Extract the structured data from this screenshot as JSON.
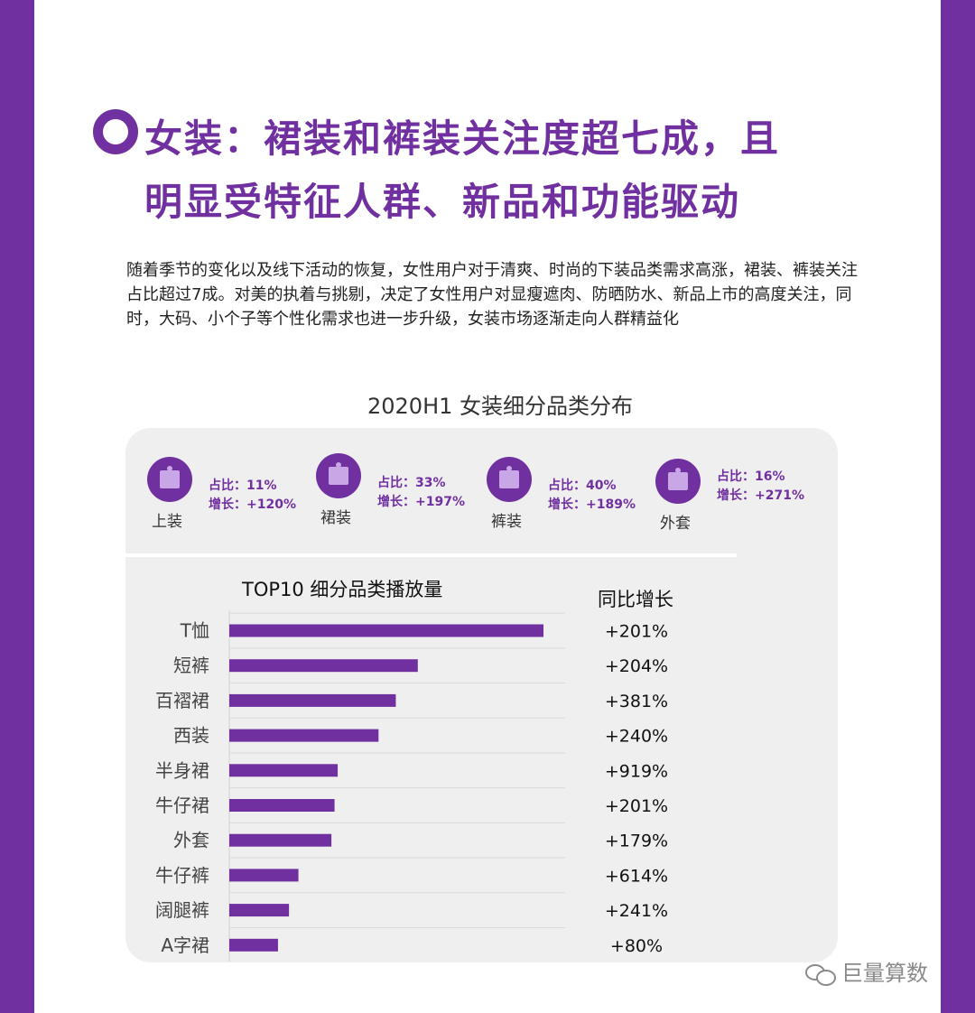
{
  "title": {
    "line1": "女装：裙装和裤装关注度超七成，且",
    "line2": "明显受特征人群、新品和功能驱动"
  },
  "intro": "随着季节的变化以及线下活动的恢复，女性用户对于清爽、时尚的下装品类需求高涨，裙装、裤装关注占比超过7成。对美的执着与挑剔，决定了女性用户对显瘦遮肉、防晒防水、新品上市的高度关注，同时，大码、小个子等个性化需求也进一步升级，女装市场逐渐走向人群精益化",
  "chart_title": "2020H1 女装细分品类分布",
  "categories": [
    {
      "name": "上装",
      "share": "占比：11%",
      "growth": "增长：+120%",
      "icon": "gift-box-icon"
    },
    {
      "name": "裙装",
      "share": "占比：33%",
      "growth": "增长：+197%",
      "icon": "gift-box-icon"
    },
    {
      "name": "裤装",
      "share": "占比：40%",
      "growth": "增长：+189%",
      "icon": "gift-box-icon"
    },
    {
      "name": "外套",
      "share": "占比：16%",
      "growth": "增长：+271%",
      "icon": "gift-box-icon"
    }
  ],
  "chart_data": {
    "type": "bar",
    "orientation": "horizontal",
    "title": "TOP10 细分品类播放量",
    "growth_header": "同比增长",
    "categories": [
      "T恤",
      "短裤",
      "百褶裙",
      "西装",
      "半身裙",
      "牛仔裙",
      "外套",
      "牛仔裤",
      "阔腿裤",
      "A字裙"
    ],
    "values": [
      100,
      60,
      53,
      47.5,
      34.5,
      33.5,
      32.5,
      22,
      19,
      15.5
    ],
    "growth": [
      "+201%",
      "+204%",
      "+381%",
      "+240%",
      "+919%",
      "+201%",
      "+179%",
      "+614%",
      "+241%",
      "+80%"
    ],
    "xlim": [
      0,
      100
    ],
    "grid": true,
    "bar_color": "#7030a0"
  },
  "colors": {
    "accent": "#7030a0",
    "panel_bg": "#efefef",
    "icon_fill": "#c9a6e6"
  },
  "watermark": "巨量算数",
  "watermark_icon": "wechat-icon"
}
